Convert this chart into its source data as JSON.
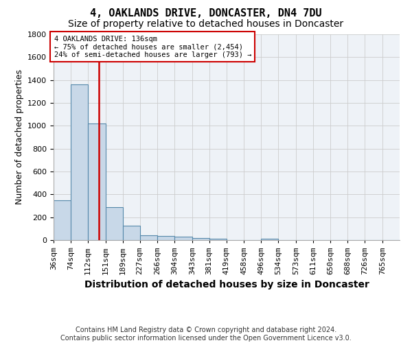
{
  "title1": "4, OAKLANDS DRIVE, DONCASTER, DN4 7DU",
  "title2": "Size of property relative to detached houses in Doncaster",
  "xlabel": "Distribution of detached houses by size in Doncaster",
  "ylabel": "Number of detached properties",
  "footer1": "Contains HM Land Registry data © Crown copyright and database right 2024.",
  "footer2": "Contains public sector information licensed under the Open Government Licence v3.0.",
  "bin_edges": [
    36,
    74,
    112,
    151,
    189,
    227,
    266,
    304,
    343,
    381,
    419,
    458,
    496,
    534,
    573,
    611,
    650,
    688,
    726,
    765,
    803
  ],
  "bar_heights": [
    350,
    1360,
    1020,
    290,
    125,
    40,
    35,
    30,
    20,
    15,
    0,
    0,
    15,
    0,
    0,
    0,
    0,
    0,
    0,
    0
  ],
  "bar_color": "#c8d8e8",
  "bar_edgecolor": "#5588aa",
  "vline_x": 136,
  "vline_color": "#cc0000",
  "annotation_line1": "4 OAKLANDS DRIVE: 136sqm",
  "annotation_line2": "← 75% of detached houses are smaller (2,454)",
  "annotation_line3": "24% of semi-detached houses are larger (793) →",
  "annotation_box_color": "#cc0000",
  "ylim": [
    0,
    1800
  ],
  "yticks": [
    0,
    200,
    400,
    600,
    800,
    1000,
    1200,
    1400,
    1600,
    1800
  ],
  "bg_color": "#eef2f7",
  "grid_color": "#cccccc",
  "title1_fontsize": 11,
  "title2_fontsize": 10,
  "ylabel_fontsize": 9,
  "tick_fontsize": 8,
  "xlabel_fontsize": 10,
  "footer_fontsize": 7
}
